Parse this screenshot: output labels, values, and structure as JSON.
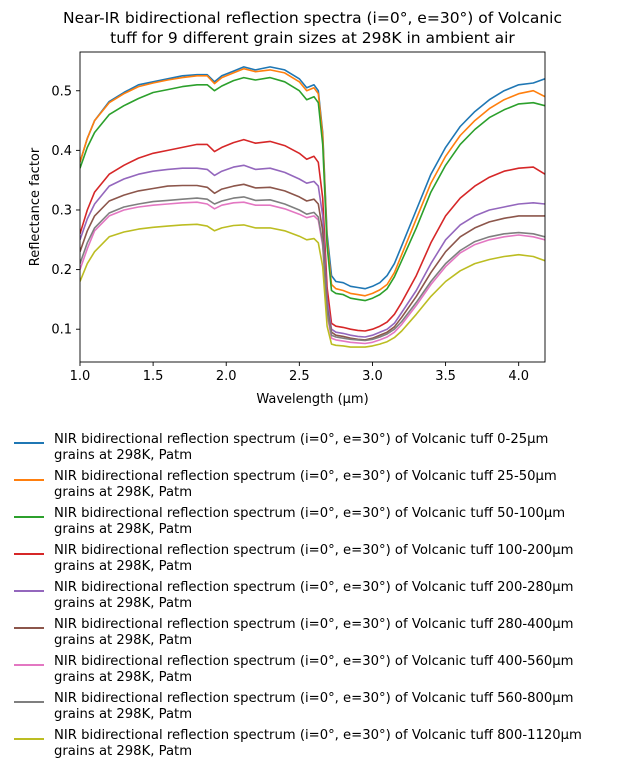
{
  "chart_data": {
    "type": "line",
    "title": "Near-IR bidirectional reflection spectra (i=0°, e=30°) of Volcanic\ntuff for 9 different grain sizes at 298K in ambient air",
    "xlabel": "Wavelength (μm)",
    "ylabel": "Reflectance factor",
    "xlim": [
      1.0,
      4.18
    ],
    "ylim": [
      0.045,
      0.565
    ],
    "xticks": [
      1.0,
      1.5,
      2.0,
      2.5,
      3.0,
      3.5,
      4.0
    ],
    "xtick_labels": [
      "1.0",
      "1.5",
      "2.0",
      "2.5",
      "3.0",
      "3.5",
      "4.0"
    ],
    "yticks": [
      0.1,
      0.2,
      0.3,
      0.4,
      0.5
    ],
    "ytick_labels": [
      "0.1",
      "0.2",
      "0.3",
      "0.4",
      "0.5"
    ],
    "grid": false,
    "legend_position": "below",
    "x": [
      1.0,
      1.05,
      1.1,
      1.2,
      1.3,
      1.4,
      1.5,
      1.6,
      1.7,
      1.8,
      1.87,
      1.92,
      1.97,
      2.05,
      2.12,
      2.2,
      2.3,
      2.4,
      2.5,
      2.55,
      2.6,
      2.63,
      2.66,
      2.69,
      2.72,
      2.75,
      2.8,
      2.85,
      2.9,
      2.95,
      3.0,
      3.05,
      3.1,
      3.15,
      3.2,
      3.3,
      3.4,
      3.5,
      3.6,
      3.7,
      3.8,
      3.9,
      4.0,
      4.1,
      4.18
    ],
    "series": [
      {
        "name": "NIR bidirectional reflection spectrum (i=0°, e=30°) of Volcanic tuff 0-25µm\ngrains at 298K, Patm",
        "color": "#1f77b4",
        "values": [
          0.38,
          0.42,
          0.45,
          0.482,
          0.497,
          0.51,
          0.515,
          0.52,
          0.525,
          0.527,
          0.527,
          0.515,
          0.525,
          0.533,
          0.54,
          0.535,
          0.54,
          0.535,
          0.52,
          0.505,
          0.51,
          0.5,
          0.43,
          0.26,
          0.19,
          0.18,
          0.178,
          0.172,
          0.17,
          0.168,
          0.172,
          0.178,
          0.19,
          0.21,
          0.24,
          0.3,
          0.36,
          0.405,
          0.44,
          0.465,
          0.485,
          0.5,
          0.51,
          0.513,
          0.52
        ]
      },
      {
        "name": "NIR bidirectional reflection spectrum (i=0°, e=30°) of Volcanic tuff 25-50µm\ngrains at 298K, Patm",
        "color": "#ff7f0e",
        "values": [
          0.38,
          0.42,
          0.45,
          0.48,
          0.495,
          0.507,
          0.513,
          0.518,
          0.522,
          0.525,
          0.525,
          0.512,
          0.522,
          0.53,
          0.537,
          0.532,
          0.535,
          0.53,
          0.515,
          0.5,
          0.505,
          0.495,
          0.425,
          0.25,
          0.175,
          0.168,
          0.165,
          0.16,
          0.158,
          0.156,
          0.16,
          0.166,
          0.175,
          0.195,
          0.225,
          0.285,
          0.345,
          0.39,
          0.425,
          0.45,
          0.47,
          0.485,
          0.495,
          0.5,
          0.49
        ]
      },
      {
        "name": "NIR bidirectional reflection spectrum (i=0°, e=30°) of Volcanic tuff 50-100µm\ngrains at 298K, Patm",
        "color": "#2ca02c",
        "values": [
          0.37,
          0.405,
          0.43,
          0.46,
          0.475,
          0.487,
          0.497,
          0.502,
          0.507,
          0.51,
          0.51,
          0.5,
          0.508,
          0.517,
          0.522,
          0.518,
          0.522,
          0.515,
          0.5,
          0.485,
          0.49,
          0.48,
          0.41,
          0.24,
          0.165,
          0.16,
          0.158,
          0.152,
          0.15,
          0.148,
          0.152,
          0.158,
          0.168,
          0.188,
          0.215,
          0.27,
          0.33,
          0.375,
          0.41,
          0.435,
          0.455,
          0.468,
          0.478,
          0.48,
          0.475
        ]
      },
      {
        "name": "NIR bidirectional reflection spectrum (i=0°, e=30°) of Volcanic tuff 100-200µm\ngrains at 298K, Patm",
        "color": "#d62728",
        "values": [
          0.26,
          0.3,
          0.33,
          0.36,
          0.375,
          0.387,
          0.395,
          0.4,
          0.405,
          0.41,
          0.41,
          0.398,
          0.405,
          0.413,
          0.418,
          0.412,
          0.415,
          0.408,
          0.395,
          0.385,
          0.39,
          0.38,
          0.32,
          0.17,
          0.11,
          0.105,
          0.103,
          0.1,
          0.098,
          0.097,
          0.1,
          0.105,
          0.112,
          0.125,
          0.145,
          0.19,
          0.245,
          0.29,
          0.32,
          0.34,
          0.355,
          0.365,
          0.37,
          0.372,
          0.36
        ]
      },
      {
        "name": "NIR bidirectional reflection spectrum (i=0°, e=30°) of Volcanic tuff 200-280µm\ngrains at 298K, Patm",
        "color": "#9467bd",
        "values": [
          0.25,
          0.285,
          0.31,
          0.34,
          0.352,
          0.36,
          0.365,
          0.368,
          0.37,
          0.37,
          0.368,
          0.358,
          0.365,
          0.372,
          0.375,
          0.368,
          0.37,
          0.363,
          0.352,
          0.345,
          0.348,
          0.34,
          0.29,
          0.15,
          0.1,
          0.095,
          0.093,
          0.09,
          0.088,
          0.087,
          0.09,
          0.095,
          0.1,
          0.11,
          0.128,
          0.165,
          0.21,
          0.25,
          0.275,
          0.29,
          0.3,
          0.305,
          0.31,
          0.312,
          0.31
        ]
      },
      {
        "name": "NIR bidirectional reflection spectrum (i=0°, e=30°) of Volcanic tuff 280-400µm\ngrains at 298K, Patm",
        "color": "#8c564b",
        "values": [
          0.23,
          0.265,
          0.29,
          0.315,
          0.325,
          0.332,
          0.336,
          0.34,
          0.341,
          0.341,
          0.338,
          0.328,
          0.335,
          0.34,
          0.343,
          0.337,
          0.338,
          0.332,
          0.322,
          0.315,
          0.318,
          0.31,
          0.265,
          0.135,
          0.095,
          0.09,
          0.088,
          0.085,
          0.083,
          0.082,
          0.085,
          0.09,
          0.095,
          0.104,
          0.12,
          0.155,
          0.195,
          0.23,
          0.255,
          0.27,
          0.28,
          0.286,
          0.29,
          0.29,
          0.29
        ]
      },
      {
        "name": "NIR bidirectional reflection spectrum (i=0°, e=30°) of Volcanic tuff 400-560µm\ngrains at 298K, Patm",
        "color": "#e377c2",
        "values": [
          0.2,
          0.235,
          0.265,
          0.29,
          0.3,
          0.305,
          0.308,
          0.31,
          0.312,
          0.313,
          0.31,
          0.302,
          0.308,
          0.312,
          0.313,
          0.308,
          0.308,
          0.302,
          0.293,
          0.287,
          0.29,
          0.283,
          0.24,
          0.125,
          0.085,
          0.082,
          0.08,
          0.078,
          0.077,
          0.076,
          0.078,
          0.082,
          0.087,
          0.095,
          0.108,
          0.14,
          0.175,
          0.205,
          0.228,
          0.242,
          0.25,
          0.255,
          0.258,
          0.255,
          0.25
        ]
      },
      {
        "name": "NIR bidirectional reflection spectrum (i=0°, e=30°) of Volcanic tuff 560-800µm\ngrains at 298K, Patm",
        "color": "#7f7f7f",
        "values": [
          0.21,
          0.245,
          0.27,
          0.295,
          0.305,
          0.31,
          0.314,
          0.316,
          0.318,
          0.32,
          0.318,
          0.31,
          0.315,
          0.32,
          0.322,
          0.316,
          0.317,
          0.31,
          0.3,
          0.293,
          0.296,
          0.288,
          0.245,
          0.13,
          0.09,
          0.087,
          0.085,
          0.083,
          0.082,
          0.081,
          0.083,
          0.087,
          0.092,
          0.1,
          0.113,
          0.145,
          0.18,
          0.21,
          0.232,
          0.247,
          0.255,
          0.26,
          0.262,
          0.26,
          0.255
        ]
      },
      {
        "name": "NIR bidirectional reflection spectrum (i=0°, e=30°) of Volcanic tuff 800-1120µm\ngrains at 298K, Patm",
        "color": "#bcbd22",
        "values": [
          0.18,
          0.21,
          0.23,
          0.255,
          0.263,
          0.268,
          0.271,
          0.273,
          0.275,
          0.276,
          0.273,
          0.265,
          0.27,
          0.274,
          0.275,
          0.27,
          0.27,
          0.265,
          0.256,
          0.25,
          0.252,
          0.245,
          0.205,
          0.105,
          0.075,
          0.073,
          0.072,
          0.07,
          0.07,
          0.07,
          0.072,
          0.075,
          0.079,
          0.086,
          0.097,
          0.125,
          0.155,
          0.18,
          0.198,
          0.21,
          0.217,
          0.222,
          0.225,
          0.222,
          0.215
        ]
      }
    ]
  }
}
